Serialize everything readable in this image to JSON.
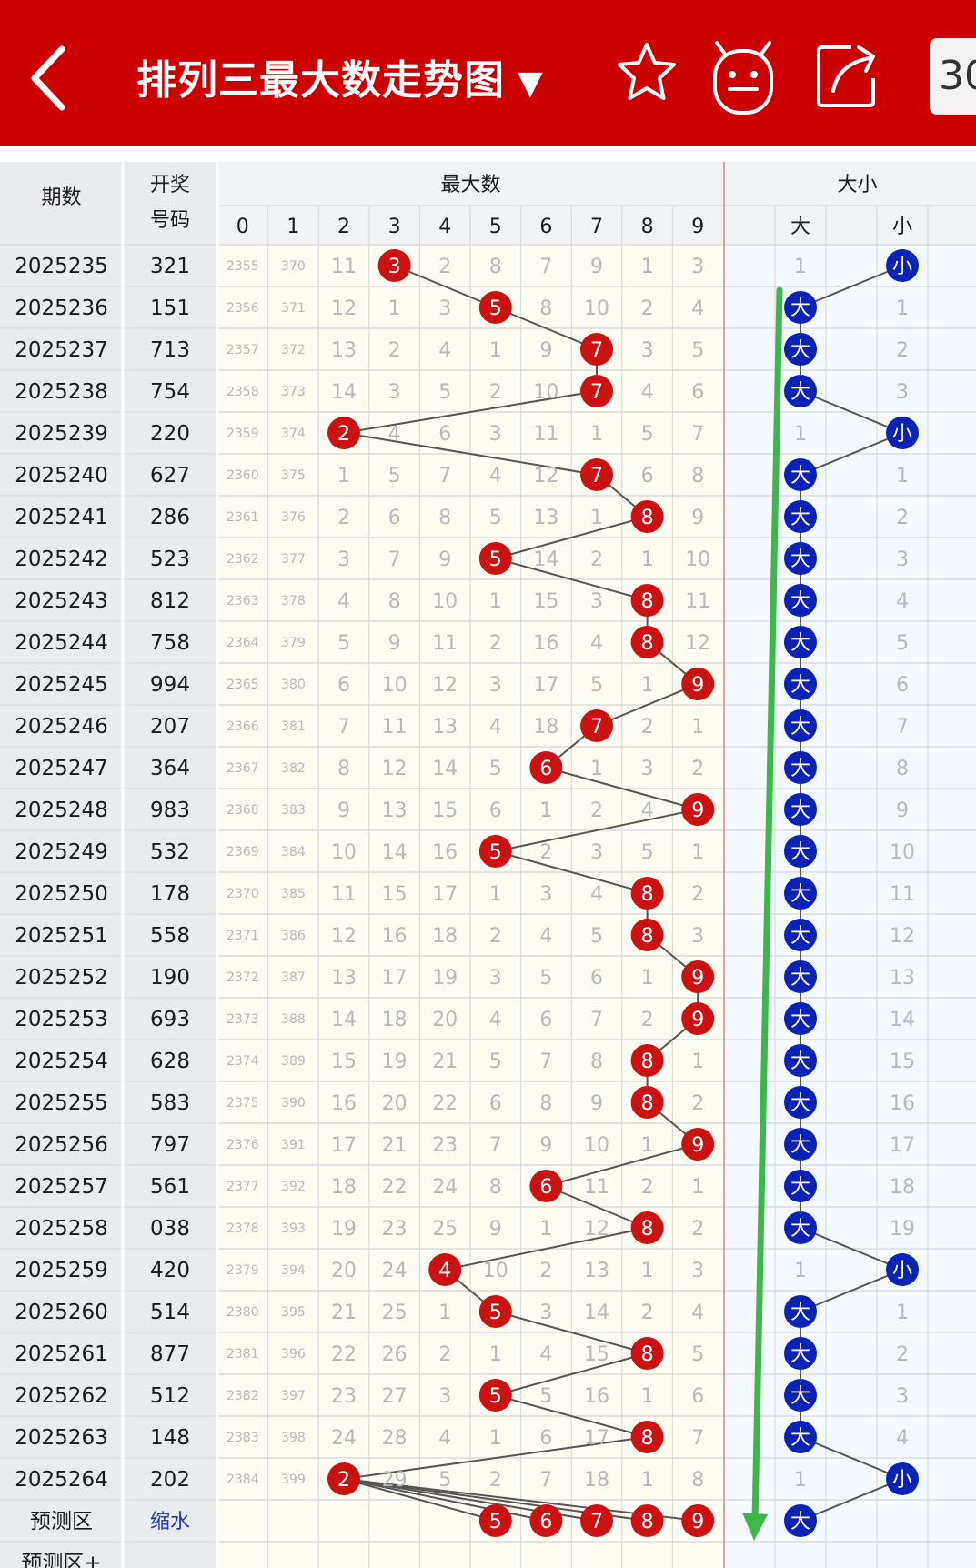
{
  "header": {
    "title": "排列三最大数走势图",
    "dropdown_glyph": "▼",
    "period_text": "30",
    "icons": [
      "back-arrow-icon",
      "star-icon",
      "robot-icon",
      "share-icon"
    ]
  },
  "table": {
    "col_period": "期数",
    "col_draw_line1": "开奖",
    "col_draw_line2": "号码",
    "group_max": "最大数",
    "group_size": "大小",
    "digit_headers": [
      "0",
      "1",
      "2",
      "3",
      "4",
      "5",
      "6",
      "7",
      "8",
      "9"
    ],
    "size_headers": [
      "大",
      "小"
    ],
    "rows": [
      {
        "issue": "2025235",
        "num": "321",
        "max": 3,
        "miss": [
          "2355",
          "370",
          "11",
          "3",
          "2",
          "8",
          "7",
          "9",
          "1",
          "3"
        ],
        "size": "小",
        "size_miss": [
          "1",
          "小"
        ]
      },
      {
        "issue": "2025236",
        "num": "151",
        "max": 5,
        "miss": [
          "2356",
          "371",
          "12",
          "1",
          "3",
          "5",
          "8",
          "10",
          "2",
          "4"
        ],
        "size": "大",
        "size_miss": [
          "大",
          "1"
        ]
      },
      {
        "issue": "2025237",
        "num": "713",
        "max": 7,
        "miss": [
          "2357",
          "372",
          "13",
          "2",
          "4",
          "1",
          "9",
          "7",
          "3",
          "5"
        ],
        "size": "大",
        "size_miss": [
          "大",
          "2"
        ]
      },
      {
        "issue": "2025238",
        "num": "754",
        "max": 7,
        "miss": [
          "2358",
          "373",
          "14",
          "3",
          "5",
          "2",
          "10",
          "7",
          "4",
          "6"
        ],
        "size": "大",
        "size_miss": [
          "大",
          "3"
        ]
      },
      {
        "issue": "2025239",
        "num": "220",
        "max": 2,
        "miss": [
          "2359",
          "374",
          "2",
          "4",
          "6",
          "3",
          "11",
          "1",
          "5",
          "7"
        ],
        "size": "小",
        "size_miss": [
          "1",
          "小"
        ]
      },
      {
        "issue": "2025240",
        "num": "627",
        "max": 7,
        "miss": [
          "2360",
          "375",
          "1",
          "5",
          "7",
          "4",
          "12",
          "7",
          "6",
          "8"
        ],
        "size": "大",
        "size_miss": [
          "大",
          "1"
        ]
      },
      {
        "issue": "2025241",
        "num": "286",
        "max": 8,
        "miss": [
          "2361",
          "376",
          "2",
          "6",
          "8",
          "5",
          "13",
          "1",
          "8",
          "9"
        ],
        "size": "大",
        "size_miss": [
          "大",
          "2"
        ]
      },
      {
        "issue": "2025242",
        "num": "523",
        "max": 5,
        "miss": [
          "2362",
          "377",
          "3",
          "7",
          "9",
          "5",
          "14",
          "2",
          "1",
          "10"
        ],
        "size": "大",
        "size_miss": [
          "大",
          "3"
        ]
      },
      {
        "issue": "2025243",
        "num": "812",
        "max": 8,
        "miss": [
          "2363",
          "378",
          "4",
          "8",
          "10",
          "1",
          "15",
          "3",
          "8",
          "11"
        ],
        "size": "大",
        "size_miss": [
          "大",
          "4"
        ]
      },
      {
        "issue": "2025244",
        "num": "758",
        "max": 8,
        "miss": [
          "2364",
          "379",
          "5",
          "9",
          "11",
          "2",
          "16",
          "4",
          "8",
          "12"
        ],
        "size": "大",
        "size_miss": [
          "大",
          "5"
        ]
      },
      {
        "issue": "2025245",
        "num": "994",
        "max": 9,
        "miss": [
          "2365",
          "380",
          "6",
          "10",
          "12",
          "3",
          "17",
          "5",
          "1",
          "9"
        ],
        "size": "大",
        "size_miss": [
          "大",
          "6"
        ]
      },
      {
        "issue": "2025246",
        "num": "207",
        "max": 7,
        "miss": [
          "2366",
          "381",
          "7",
          "11",
          "13",
          "4",
          "18",
          "7",
          "2",
          "1"
        ],
        "size": "大",
        "size_miss": [
          "大",
          "7"
        ]
      },
      {
        "issue": "2025247",
        "num": "364",
        "max": 6,
        "miss": [
          "2367",
          "382",
          "8",
          "12",
          "14",
          "5",
          "6",
          "1",
          "3",
          "2"
        ],
        "size": "大",
        "size_miss": [
          "大",
          "8"
        ]
      },
      {
        "issue": "2025248",
        "num": "983",
        "max": 9,
        "miss": [
          "2368",
          "383",
          "9",
          "13",
          "15",
          "6",
          "1",
          "2",
          "4",
          "9"
        ],
        "size": "大",
        "size_miss": [
          "大",
          "9"
        ]
      },
      {
        "issue": "2025249",
        "num": "532",
        "max": 5,
        "miss": [
          "2369",
          "384",
          "10",
          "14",
          "16",
          "5",
          "2",
          "3",
          "5",
          "1"
        ],
        "size": "大",
        "size_miss": [
          "大",
          "10"
        ]
      },
      {
        "issue": "2025250",
        "num": "178",
        "max": 8,
        "miss": [
          "2370",
          "385",
          "11",
          "15",
          "17",
          "1",
          "3",
          "4",
          "8",
          "2"
        ],
        "size": "大",
        "size_miss": [
          "大",
          "11"
        ]
      },
      {
        "issue": "2025251",
        "num": "558",
        "max": 8,
        "miss": [
          "2371",
          "386",
          "12",
          "16",
          "18",
          "2",
          "4",
          "5",
          "8",
          "3"
        ],
        "size": "大",
        "size_miss": [
          "大",
          "12"
        ]
      },
      {
        "issue": "2025252",
        "num": "190",
        "max": 9,
        "miss": [
          "2372",
          "387",
          "13",
          "17",
          "19",
          "3",
          "5",
          "6",
          "1",
          "9"
        ],
        "size": "大",
        "size_miss": [
          "大",
          "13"
        ]
      },
      {
        "issue": "2025253",
        "num": "693",
        "max": 9,
        "miss": [
          "2373",
          "388",
          "14",
          "18",
          "20",
          "4",
          "6",
          "7",
          "2",
          "9"
        ],
        "size": "大",
        "size_miss": [
          "大",
          "14"
        ]
      },
      {
        "issue": "2025254",
        "num": "628",
        "max": 8,
        "miss": [
          "2374",
          "389",
          "15",
          "19",
          "21",
          "5",
          "7",
          "8",
          "8",
          "1"
        ],
        "size": "大",
        "size_miss": [
          "大",
          "15"
        ]
      },
      {
        "issue": "2025255",
        "num": "583",
        "max": 8,
        "miss": [
          "2375",
          "390",
          "16",
          "20",
          "22",
          "6",
          "8",
          "9",
          "8",
          "2"
        ],
        "size": "大",
        "size_miss": [
          "大",
          "16"
        ]
      },
      {
        "issue": "2025256",
        "num": "797",
        "max": 9,
        "miss": [
          "2376",
          "391",
          "17",
          "21",
          "23",
          "7",
          "9",
          "10",
          "1",
          "9"
        ],
        "size": "大",
        "size_miss": [
          "大",
          "17"
        ]
      },
      {
        "issue": "2025257",
        "num": "561",
        "max": 6,
        "miss": [
          "2377",
          "392",
          "18",
          "22",
          "24",
          "8",
          "6",
          "11",
          "2",
          "1"
        ],
        "size": "大",
        "size_miss": [
          "大",
          "18"
        ]
      },
      {
        "issue": "2025258",
        "num": "038",
        "max": 8,
        "miss": [
          "2378",
          "393",
          "19",
          "23",
          "25",
          "9",
          "1",
          "12",
          "8",
          "2"
        ],
        "size": "大",
        "size_miss": [
          "大",
          "19"
        ]
      },
      {
        "issue": "2025259",
        "num": "420",
        "max": 4,
        "miss": [
          "2379",
          "394",
          "20",
          "24",
          "4",
          "10",
          "2",
          "13",
          "1",
          "3"
        ],
        "size": "小",
        "size_miss": [
          "1",
          "小"
        ]
      },
      {
        "issue": "2025260",
        "num": "514",
        "max": 5,
        "miss": [
          "2380",
          "395",
          "21",
          "25",
          "1",
          "5",
          "3",
          "14",
          "2",
          "4"
        ],
        "size": "大",
        "size_miss": [
          "大",
          "1"
        ]
      },
      {
        "issue": "2025261",
        "num": "877",
        "max": 8,
        "miss": [
          "2381",
          "396",
          "22",
          "26",
          "2",
          "1",
          "4",
          "15",
          "8",
          "5"
        ],
        "size": "大",
        "size_miss": [
          "大",
          "2"
        ]
      },
      {
        "issue": "2025262",
        "num": "512",
        "max": 5,
        "miss": [
          "2382",
          "397",
          "23",
          "27",
          "3",
          "5",
          "5",
          "16",
          "1",
          "6"
        ],
        "size": "大",
        "size_miss": [
          "大",
          "3"
        ]
      },
      {
        "issue": "2025263",
        "num": "148",
        "max": 8,
        "miss": [
          "2383",
          "398",
          "24",
          "28",
          "4",
          "1",
          "6",
          "17",
          "8",
          "7"
        ],
        "size": "大",
        "size_miss": [
          "大",
          "4"
        ]
      },
      {
        "issue": "2025264",
        "num": "202",
        "max": 2,
        "miss": [
          "2384",
          "399",
          "2",
          "29",
          "5",
          "2",
          "7",
          "18",
          "1",
          "8"
        ],
        "size": "小",
        "size_miss": [
          "1",
          "小"
        ]
      }
    ],
    "predict": {
      "label": "预测区",
      "value": "缩水",
      "balls": [
        5,
        6,
        7,
        8,
        9
      ],
      "size": "大"
    },
    "predict_plus": {
      "label": "预测区+"
    }
  },
  "colors": {
    "header_red": "#cc0000",
    "ball_red": "#cc1111",
    "ball_blue": "#0a23b5",
    "trend_line": "#555555",
    "arrow_green": "#3cb84a",
    "grid_line": "#dcdcdc",
    "side_bg": "#e9ebee",
    "digit_bg": "#fdfcf3",
    "size_bg": "#f4f9fd"
  }
}
